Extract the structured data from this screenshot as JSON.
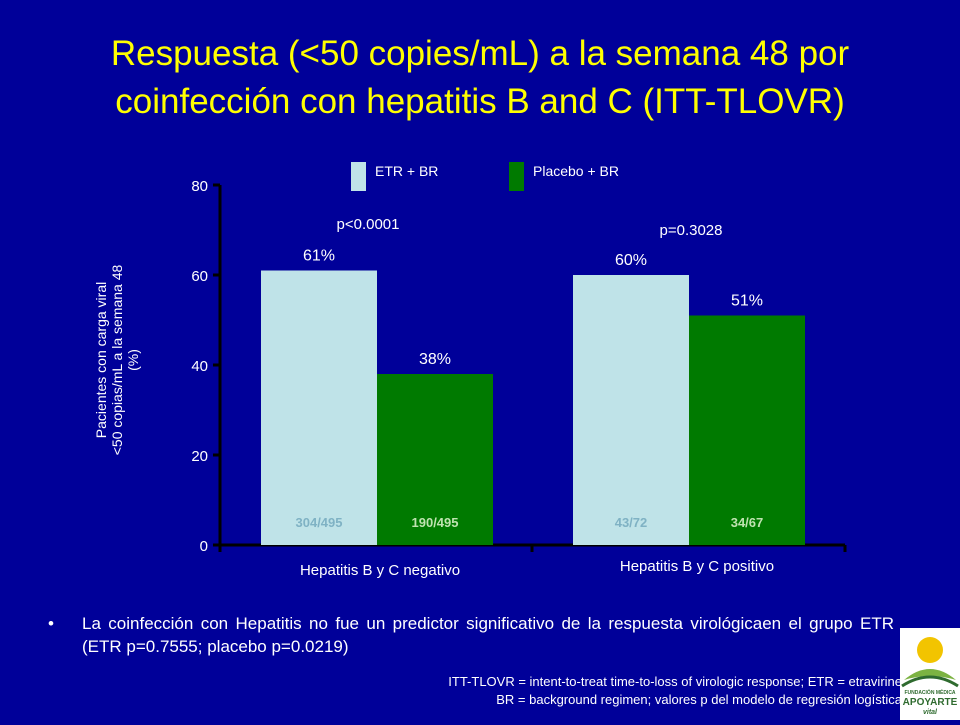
{
  "title": {
    "line1": "Respuesta (<50 copies/mL) a la semana 48 por",
    "line2": "coinfección con hepatitis B and C (ITT-TLOVR)"
  },
  "colors": {
    "background": "#000099",
    "title": "#ffff00",
    "etr": "#bfe3e8",
    "placebo": "#007a00",
    "text": "#ffffff"
  },
  "chart_data": {
    "type": "bar",
    "categories": [
      "Hepatitis B y C negativo",
      "Hepatitis B y C positivo"
    ],
    "series": [
      {
        "name": "ETR + BR",
        "values": [
          61,
          60
        ],
        "labels": [
          "61%",
          "60%"
        ],
        "counts": [
          "304/495",
          "43/72"
        ]
      },
      {
        "name": "Placebo + BR",
        "values": [
          38,
          51
        ],
        "labels": [
          "38%",
          "51%"
        ],
        "counts": [
          "190/495",
          "34/67"
        ]
      }
    ],
    "pvalues": [
      "p<0.0001",
      "p=0.3028"
    ],
    "ylabel_lines": [
      "Pacientes con carga viral",
      "<50 copias/mL a la semana 48",
      "(%)"
    ],
    "ylim": [
      0,
      80
    ],
    "yticks": [
      0,
      20,
      40,
      60,
      80
    ],
    "legend_position": "top"
  },
  "bullet": "La coinfección con Hepatitis no fue un predictor significativo de la respuesta virológicaen el grupo ETR (ETR p=0.7555; placebo p=0.0219)",
  "footnote": {
    "line1": "ITT-TLOVR = intent-to-treat time-to-loss of virologic response; ETR = etravirine",
    "line2": "BR = background regimen; valores p del modelo de regresión logística"
  },
  "logo": {
    "top": "FUNDACIÓN MÉDICA",
    "name": "APOYARTE",
    "sub": "vital"
  }
}
